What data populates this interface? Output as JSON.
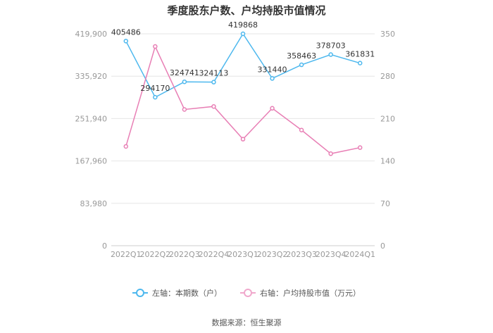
{
  "title": "季度股东户数、户均持股市值情况",
  "source": "数据来源：恒生聚源",
  "legend": [
    {
      "label": "左轴：本期数（户）",
      "color": "#4db8ee"
    },
    {
      "label": "右轴：户均持股市值（万元）",
      "color": "#e87fb5"
    }
  ],
  "chart_data": {
    "type": "line",
    "categories": [
      "2022Q1",
      "2022Q2",
      "2022Q3",
      "2022Q4",
      "2023Q1",
      "2023Q2",
      "2023Q3",
      "2023Q4",
      "2024Q1"
    ],
    "left_axis": {
      "ticks": [
        "0",
        "83,980",
        "167,960",
        "251,940",
        "335,920",
        "419,900"
      ],
      "range": [
        0,
        419900
      ]
    },
    "right_axis": {
      "ticks": [
        "0",
        "70",
        "140",
        "210",
        "280",
        "350"
      ],
      "range": [
        0,
        350
      ]
    },
    "series": [
      {
        "name": "左轴：本期数（户）",
        "axis": "left",
        "color": "#4db8ee",
        "values": [
          405486,
          294170,
          324741,
          324113,
          419868,
          331440,
          358463,
          378703,
          361831
        ],
        "labels": [
          "405486",
          "294170",
          "324741",
          "324113",
          "419868",
          "331440",
          "358463",
          "378703",
          "361831"
        ]
      },
      {
        "name": "右轴：户均持股市值（万元）",
        "axis": "right",
        "color": "#e87fb5",
        "values": [
          164,
          329,
          225,
          230,
          176,
          227,
          191,
          152,
          162
        ]
      }
    ],
    "grid": true,
    "legend_position": "bottom"
  }
}
